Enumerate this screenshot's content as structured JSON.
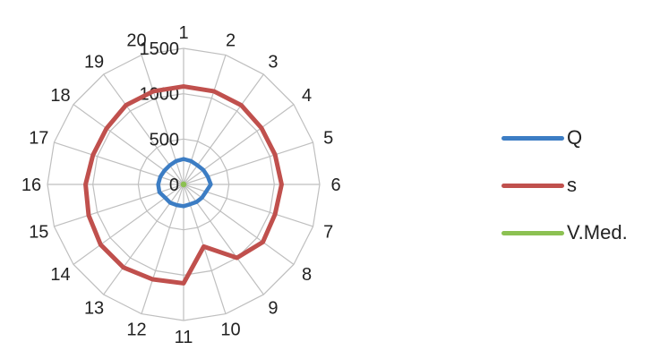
{
  "chart_data": {
    "type": "radar",
    "categories": [
      "1",
      "2",
      "3",
      "4",
      "5",
      "6",
      "7",
      "8",
      "9",
      "10",
      "11",
      "12",
      "13",
      "14",
      "15",
      "16",
      "17",
      "18",
      "19",
      "20"
    ],
    "rlim": [
      0,
      1500
    ],
    "rticks": [
      0,
      500,
      1000,
      1500
    ],
    "rtick_labels": [
      "0",
      "500",
      "1000",
      "1500"
    ],
    "grid": true,
    "legend": "right",
    "series": [
      {
        "name": "Q",
        "color": "#3c7dc4",
        "values": [
          280,
          270,
          260,
          270,
          280,
          300,
          260,
          250,
          240,
          230,
          240,
          240,
          250,
          250,
          280,
          280,
          270,
          260,
          260,
          270
        ]
      },
      {
        "name": "s",
        "color": "#c0504d",
        "values": [
          1080,
          1080,
          1080,
          1060,
          1060,
          1080,
          1060,
          1080,
          1000,
          720,
          1090,
          1100,
          1130,
          1130,
          1100,
          1080,
          1050,
          1050,
          1080,
          1080
        ]
      },
      {
        "name": "V.Med.",
        "color": "#8cc152",
        "values": [
          10,
          10,
          10,
          10,
          10,
          10,
          10,
          10,
          10,
          10,
          10,
          10,
          10,
          10,
          10,
          10,
          10,
          10,
          10,
          10
        ]
      }
    ]
  }
}
